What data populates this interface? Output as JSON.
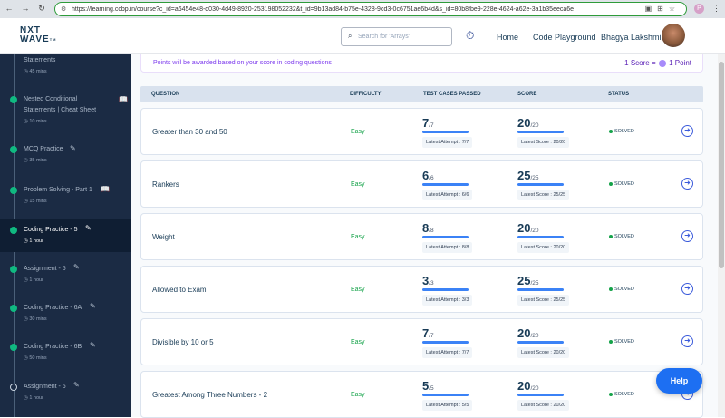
{
  "browser": {
    "url": "https://learning.ccbp.in/course?c_id=a6454e48-d030-4d49-8920-253198052232&t_id=9b13ad84-b75e-4328-9cd3-0c6751ae6b4d&s_id=80b8fbe9-228e-4624-a62e-3a1b35eeca6e",
    "profile_initial": "P"
  },
  "header": {
    "logo_top": "NXT",
    "logo_bottom": "WAVE",
    "logo_mark": "TM",
    "search_placeholder": "Search for 'Arrays'",
    "nav_home": "Home",
    "nav_playground": "Code Playground",
    "user_name": "Bhagya Lakshmi"
  },
  "sidebar": {
    "items": [
      {
        "title_lines": [
          "Statements"
        ],
        "meta": "45 mins",
        "status": "done",
        "icon": ""
      },
      {
        "title_lines": [
          "Nested Conditional",
          "Statements | Cheat Sheet"
        ],
        "meta": "10 mins",
        "status": "done",
        "icon": "book-icon"
      },
      {
        "title_lines": [
          "MCQ Practice"
        ],
        "meta": "35 mins",
        "status": "done",
        "icon": "pencil-icon"
      },
      {
        "title_lines": [
          "Problem Solving - Part 1"
        ],
        "meta": "15 mins",
        "status": "done",
        "icon": "book-icon"
      },
      {
        "title_lines": [
          "Coding Practice - 5"
        ],
        "meta": "1 hour",
        "status": "done",
        "icon": "pencil-icon",
        "active": true
      },
      {
        "title_lines": [
          "Assignment - 5"
        ],
        "meta": "1 hour",
        "status": "done",
        "icon": "pencil-icon"
      },
      {
        "title_lines": [
          "Coding Practice - 6A"
        ],
        "meta": "30 mins",
        "status": "done",
        "icon": "pencil-icon"
      },
      {
        "title_lines": [
          "Coding Practice - 6B"
        ],
        "meta": "50 mins",
        "status": "done",
        "icon": "pencil-icon"
      },
      {
        "title_lines": [
          "Assignment - 6"
        ],
        "meta": "1 hour",
        "status": "pending",
        "icon": "pencil-icon"
      }
    ]
  },
  "banner": {
    "text": "Points will be awarded based on your score in coding questions",
    "score_label": "1 Score =",
    "point_label": "1 Point"
  },
  "table": {
    "headers": {
      "question": "QUESTION",
      "difficulty": "DIFFICULTY",
      "tests": "TEST CASES PASSED",
      "score": "SCORE",
      "status": "STATUS"
    },
    "rows": [
      {
        "question": "Greater than 30 and 50",
        "difficulty": "Easy",
        "passed": "7",
        "total": "/7",
        "latest_attempt": "Latest Attempt : 7/7",
        "score": "20",
        "score_total": "/20",
        "latest_score": "Latest Score : 20/20",
        "status": "SOLVED"
      },
      {
        "question": "Rankers",
        "difficulty": "Easy",
        "passed": "6",
        "total": "/6",
        "latest_attempt": "Latest Attempt : 6/6",
        "score": "25",
        "score_total": "/25",
        "latest_score": "Latest Score : 25/25",
        "status": "SOLVED"
      },
      {
        "question": "Weight",
        "difficulty": "Easy",
        "passed": "8",
        "total": "/8",
        "latest_attempt": "Latest Attempt : 8/8",
        "score": "20",
        "score_total": "/20",
        "latest_score": "Latest Score : 20/20",
        "status": "SOLVED"
      },
      {
        "question": "Allowed to Exam",
        "difficulty": "Easy",
        "passed": "3",
        "total": "/3",
        "latest_attempt": "Latest Attempt : 3/3",
        "score": "25",
        "score_total": "/25",
        "latest_score": "Latest Score : 25/25",
        "status": "SOLVED"
      },
      {
        "question": "Divisible by 10 or 5",
        "difficulty": "Easy",
        "passed": "7",
        "total": "/7",
        "latest_attempt": "Latest Attempt : 7/7",
        "score": "20",
        "score_total": "/20",
        "latest_score": "Latest Score : 20/20",
        "status": "SOLVED"
      },
      {
        "question": "Greatest Among Three Numbers - 2",
        "difficulty": "Easy",
        "passed": "5",
        "total": "/5",
        "latest_attempt": "Latest Attempt : 5/5",
        "score": "20",
        "score_total": "/20",
        "latest_score": "Latest Score : 20/20",
        "status": "SOLVED"
      }
    ]
  },
  "help_label": "Help"
}
